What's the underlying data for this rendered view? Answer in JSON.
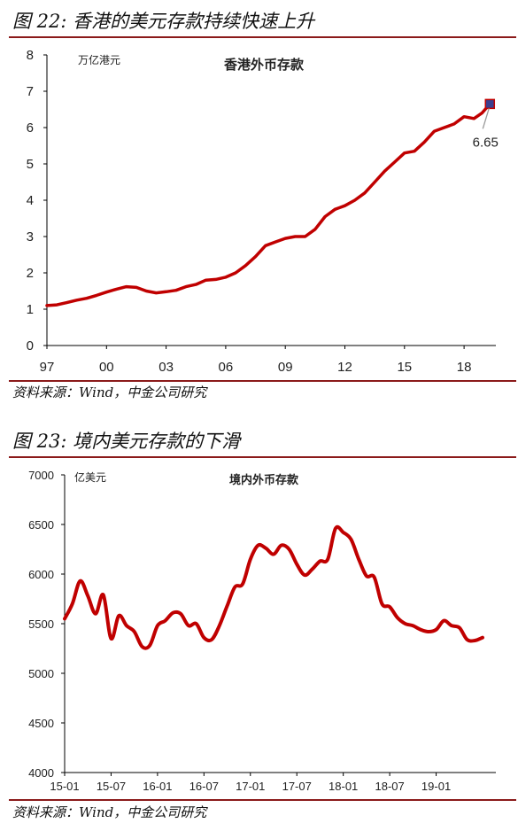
{
  "figure1": {
    "title": "图 22: 香港的美元存款持续快速上升",
    "source": "资料来源：Wind，中金公司研究"
  },
  "figure2": {
    "title": "图 23: 境内美元存款的下滑",
    "source": "资料来源：Wind，中金公司研究"
  },
  "chart_data": [
    {
      "type": "line",
      "title": "香港外币存款",
      "ylabel": "万亿港元",
      "xlabel": "",
      "ylim": [
        0,
        8
      ],
      "yticks": [
        "0",
        "1",
        "2",
        "3",
        "4",
        "5",
        "6",
        "7",
        "8"
      ],
      "xticks": [
        "97",
        "00",
        "03",
        "06",
        "09",
        "12",
        "15",
        "18"
      ],
      "xlim": [
        1997,
        2019.6
      ],
      "grid": false,
      "series": [
        {
          "x": [
            1997.0,
            1997.5,
            1998.0,
            1998.5,
            1999.0,
            1999.5,
            2000.0,
            2000.5,
            2001.0,
            2001.5,
            2002.0,
            2002.5,
            2003.0,
            2003.5,
            2004.0,
            2004.5,
            2005.0,
            2005.5,
            2006.0,
            2006.5,
            2007.0,
            2007.5,
            2008.0,
            2008.5,
            2009.0,
            2009.5,
            2010.0,
            2010.5,
            2011.0,
            2011.5,
            2012.0,
            2012.5,
            2013.0,
            2013.5,
            2014.0,
            2014.5,
            2015.0,
            2015.5,
            2016.0,
            2016.5,
            2017.0,
            2017.5,
            2018.0,
            2018.5,
            2018.9,
            2019.3
          ],
          "values": [
            1.1,
            1.12,
            1.18,
            1.25,
            1.3,
            1.38,
            1.47,
            1.55,
            1.62,
            1.6,
            1.5,
            1.45,
            1.48,
            1.52,
            1.62,
            1.68,
            1.8,
            1.82,
            1.88,
            2.0,
            2.2,
            2.45,
            2.75,
            2.85,
            2.95,
            3.0,
            3.0,
            3.2,
            3.55,
            3.75,
            3.85,
            4.0,
            4.2,
            4.5,
            4.8,
            5.05,
            5.3,
            5.35,
            5.6,
            5.9,
            6.0,
            6.1,
            6.3,
            6.25,
            6.4,
            6.65
          ]
        }
      ],
      "annotations": [
        {
          "text": "6.65",
          "x": 2019.3,
          "y": 6.65,
          "marker_color": "#3b3f8f"
        }
      ],
      "colors": {
        "line": "#c00000"
      }
    },
    {
      "type": "line",
      "title": "境内外币存款",
      "ylabel": "亿美元",
      "xlabel": "",
      "ylim": [
        4000,
        7000
      ],
      "yticks": [
        "4000",
        "4500",
        "5000",
        "5500",
        "6000",
        "6500",
        "7000"
      ],
      "xticks": [
        "15-01",
        "15-07",
        "16-01",
        "16-07",
        "17-01",
        "17-07",
        "18-01",
        "18-07",
        "19-01"
      ],
      "grid": false,
      "series": [
        {
          "x": [
            0,
            1,
            2,
            3,
            4,
            5,
            6,
            7,
            8,
            9,
            10,
            11,
            12,
            13,
            14,
            15,
            16,
            17,
            18,
            19,
            20,
            21,
            22,
            23,
            24,
            25,
            26,
            27,
            28,
            29,
            30,
            31,
            32,
            33,
            34,
            35,
            36,
            37,
            38,
            39,
            40,
            41,
            42,
            43,
            44,
            45,
            46,
            47,
            48,
            49,
            50,
            51,
            52,
            53,
            54
          ],
          "values": [
            5550,
            5700,
            5930,
            5780,
            5600,
            5790,
            5350,
            5580,
            5480,
            5420,
            5270,
            5280,
            5480,
            5530,
            5610,
            5600,
            5480,
            5500,
            5360,
            5340,
            5480,
            5680,
            5870,
            5900,
            6150,
            6290,
            6260,
            6200,
            6290,
            6250,
            6100,
            5990,
            6050,
            6130,
            6150,
            6460,
            6420,
            6350,
            6150,
            5980,
            5970,
            5700,
            5670,
            5560,
            5500,
            5480,
            5440,
            5420,
            5440,
            5530,
            5480,
            5460,
            5340,
            5330,
            5360
          ]
        }
      ],
      "colors": {
        "line": "#c00000"
      }
    }
  ]
}
